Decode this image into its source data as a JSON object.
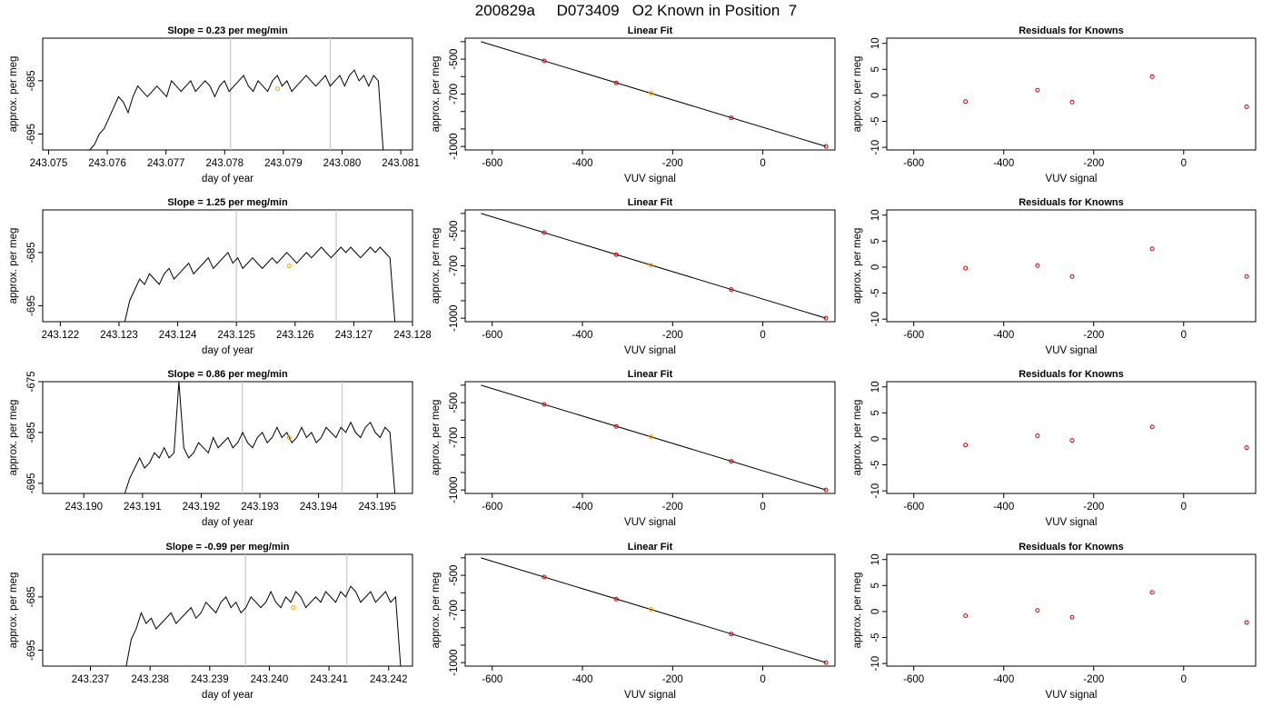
{
  "title": "200829a     D073409   O2 Known in Position  7",
  "colors": {
    "trace": "#000000",
    "known_point": "#cc0000",
    "sample_point": "#ffa500",
    "guide_line": "#c8c8c8"
  },
  "rows": [
    {
      "slope_title": "Slope =  0.23  per meg/min",
      "fit_title": "Linear Fit",
      "resid_title": "Residuals for Knowns",
      "ts_xlabel": "day of year",
      "ts_ylabel": "approx. per meg",
      "fit_xlabel": "VUV signal",
      "fit_ylabel": "approx. per meg",
      "resid_xlabel": "VUV signal",
      "resid_ylabel": "approx. per meg",
      "ts_xticks": [
        "243.075",
        "243.076",
        "243.077",
        "243.078",
        "243.079",
        "243.080",
        "243.081"
      ],
      "ts_yticks": [
        "-695",
        "-685"
      ],
      "fit_xticks": [
        "-600",
        "-400",
        "-200",
        "0"
      ],
      "fit_yticks": [
        "-1000",
        "-700",
        "-500"
      ],
      "resid_xticks": [
        "-600",
        "-400",
        "-200",
        "0"
      ],
      "resid_yticks": [
        "-10",
        "-5",
        "0",
        "5",
        "10"
      ]
    },
    {
      "slope_title": "Slope =  1.25  per meg/min",
      "fit_title": "Linear Fit",
      "resid_title": "Residuals for Knowns",
      "ts_xlabel": "day of year",
      "ts_ylabel": "approx. per meg",
      "fit_xlabel": "VUV signal",
      "fit_ylabel": "approx. per meg",
      "resid_xlabel": "VUV signal",
      "resid_ylabel": "approx. per meg",
      "ts_xticks": [
        "243.122",
        "243.123",
        "243.124",
        "243.125",
        "243.126",
        "243.127",
        "243.128"
      ],
      "ts_yticks": [
        "-695",
        "-685"
      ],
      "fit_xticks": [
        "-600",
        "-400",
        "-200",
        "0"
      ],
      "fit_yticks": [
        "-1000",
        "-700",
        "-500"
      ],
      "resid_xticks": [
        "-600",
        "-400",
        "-200",
        "0"
      ],
      "resid_yticks": [
        "-10",
        "-5",
        "0",
        "5",
        "10"
      ]
    },
    {
      "slope_title": "Slope =  0.86  per meg/min",
      "fit_title": "Linear Fit",
      "resid_title": "Residuals for Knowns",
      "ts_xlabel": "day of year",
      "ts_ylabel": "approx. per meg",
      "fit_xlabel": "VUV signal",
      "fit_ylabel": "approx. per meg",
      "resid_xlabel": "VUV signal",
      "resid_ylabel": "approx. per meg",
      "ts_xticks": [
        "243.190",
        "243.191",
        "243.192",
        "243.193",
        "243.194",
        "243.195"
      ],
      "ts_yticks": [
        "-695",
        "-685",
        "-675"
      ],
      "fit_xticks": [
        "-600",
        "-400",
        "-200",
        "0"
      ],
      "fit_yticks": [
        "-1000",
        "-700",
        "-500"
      ],
      "resid_xticks": [
        "-600",
        "-400",
        "-200",
        "0"
      ],
      "resid_yticks": [
        "-10",
        "-5",
        "0",
        "5",
        "10"
      ]
    },
    {
      "slope_title": "Slope =  -0.99  per meg/min",
      "fit_title": "Linear Fit",
      "resid_title": "Residuals for Knowns",
      "ts_xlabel": "day of year",
      "ts_ylabel": "approx. per meg",
      "fit_xlabel": "VUV signal",
      "fit_ylabel": "approx. per meg",
      "resid_xlabel": "VUV signal",
      "resid_ylabel": "approx. per meg",
      "ts_xticks": [
        "243.237",
        "243.238",
        "243.239",
        "243.240",
        "243.241",
        "243.242"
      ],
      "ts_yticks": [
        "-695",
        "-685"
      ],
      "fit_xticks": [
        "-600",
        "-400",
        "-200",
        "0"
      ],
      "fit_yticks": [
        "-1000",
        "-700",
        "-500"
      ],
      "resid_xticks": [
        "-600",
        "-400",
        "-200",
        "0"
      ],
      "resid_yticks": [
        "-10",
        "-5",
        "0",
        "5",
        "10"
      ]
    }
  ],
  "chart_data": [
    {
      "type": "line",
      "title": "Slope =  0.23  per meg/min",
      "xlabel": "day of year",
      "ylabel": "approx. per meg",
      "xlim": [
        243.0749,
        243.0812
      ],
      "ylim": [
        -698,
        -677
      ],
      "guide_lines_x": [
        243.0781,
        243.0798
      ],
      "trace_x_range": [
        243.0757,
        243.0807
      ],
      "trace_y": [
        -698,
        -697,
        -695,
        -694,
        -692,
        -690,
        -688,
        -689,
        -691,
        -688,
        -686,
        -687,
        -688,
        -687,
        -686,
        -687,
        -688,
        -685,
        -686,
        -687,
        -686,
        -685,
        -687,
        -686,
        -685,
        -686,
        -688,
        -686,
        -685,
        -687,
        -686,
        -685,
        -684,
        -686,
        -687,
        -685,
        -686,
        -687,
        -685,
        -684,
        -686,
        -685,
        -687,
        -686,
        -685,
        -684,
        -685,
        -686,
        -685,
        -684,
        -686,
        -685,
        -684,
        -686,
        -684,
        -683,
        -685,
        -684,
        -686,
        -684,
        -685,
        -698
      ],
      "sample_point": {
        "x": 243.0789,
        "y": -686.5
      }
    },
    {
      "type": "scatter",
      "title": "Linear Fit",
      "xlabel": "VUV signal",
      "ylabel": "approx. per meg",
      "xlim": [
        -660,
        160
      ],
      "ylim": [
        -1020,
        -380
      ],
      "fit_line": [
        [
          -625,
          -400
        ],
        [
          140,
          -1000
        ]
      ],
      "known_points": [
        {
          "x": -485,
          "y": -510
        },
        {
          "x": -325,
          "y": -636
        },
        {
          "x": -70,
          "y": -836
        },
        {
          "x": 140,
          "y": -1000
        }
      ],
      "sample_point": {
        "x": -248,
        "y": -695
      }
    },
    {
      "type": "scatter",
      "title": "Residuals for Knowns",
      "xlabel": "VUV signal",
      "ylabel": "approx. per meg",
      "xlim": [
        -660,
        160
      ],
      "ylim": [
        -10.5,
        11
      ],
      "known_points": [
        {
          "x": -485,
          "y": -1.2
        },
        {
          "x": -325,
          "y": 1.0
        },
        {
          "x": -248,
          "y": -1.3
        },
        {
          "x": -70,
          "y": 3.6
        },
        {
          "x": 140,
          "y": -2.2
        }
      ]
    },
    {
      "type": "line",
      "title": "Slope =  1.25  per meg/min",
      "xlabel": "day of year",
      "ylabel": "approx. per meg",
      "xlim": [
        243.1217,
        243.128
      ],
      "ylim": [
        -698,
        -677
      ],
      "guide_lines_x": [
        243.125,
        243.1267
      ],
      "trace_x_range": [
        243.1231,
        243.1277
      ],
      "trace_y": [
        -698,
        -694,
        -692,
        -690,
        -691,
        -689,
        -690,
        -691,
        -689,
        -688,
        -690,
        -689,
        -688,
        -687,
        -689,
        -688,
        -687,
        -686,
        -688,
        -687,
        -686,
        -685,
        -687,
        -686,
        -688,
        -687,
        -686,
        -687,
        -688,
        -687,
        -686,
        -687,
        -686,
        -685,
        -686,
        -687,
        -686,
        -685,
        -686,
        -685,
        -684,
        -685,
        -686,
        -685,
        -684,
        -685,
        -684,
        -685,
        -686,
        -685,
        -684,
        -685,
        -684,
        -685,
        -686,
        -698
      ],
      "sample_point": {
        "x": 243.1259,
        "y": -687.5
      }
    },
    {
      "type": "scatter",
      "title": "Linear Fit",
      "xlabel": "VUV signal",
      "ylabel": "approx. per meg",
      "xlim": [
        -660,
        160
      ],
      "ylim": [
        -1020,
        -380
      ],
      "fit_line": [
        [
          -625,
          -400
        ],
        [
          140,
          -1000
        ]
      ],
      "known_points": [
        {
          "x": -485,
          "y": -510
        },
        {
          "x": -325,
          "y": -636
        },
        {
          "x": -70,
          "y": -836
        },
        {
          "x": 140,
          "y": -1000
        }
      ],
      "sample_point": {
        "x": -248,
        "y": -696
      }
    },
    {
      "type": "scatter",
      "title": "Residuals for Knowns",
      "xlabel": "VUV signal",
      "ylabel": "approx. per meg",
      "xlim": [
        -660,
        160
      ],
      "ylim": [
        -10.5,
        11
      ],
      "known_points": [
        {
          "x": -485,
          "y": -0.2
        },
        {
          "x": -325,
          "y": 0.3
        },
        {
          "x": -248,
          "y": -1.8
        },
        {
          "x": -70,
          "y": 3.5
        },
        {
          "x": 140,
          "y": -1.8
        }
      ]
    },
    {
      "type": "line",
      "title": "Slope =  0.86  per meg/min",
      "xlabel": "day of year",
      "ylabel": "approx. per meg",
      "xlim": [
        243.1893,
        243.1956
      ],
      "ylim": [
        -697,
        -675
      ],
      "guide_lines_x": [
        243.1927,
        243.1944
      ],
      "trace_x_range": [
        243.1907,
        243.1953
      ],
      "trace_y": [
        -697,
        -694,
        -692,
        -690,
        -692,
        -691,
        -689,
        -690,
        -688,
        -690,
        -689,
        -675,
        -688,
        -690,
        -689,
        -687,
        -688,
        -689,
        -686,
        -688,
        -687,
        -686,
        -688,
        -687,
        -685,
        -687,
        -688,
        -686,
        -685,
        -687,
        -686,
        -684,
        -686,
        -685,
        -687,
        -686,
        -684,
        -686,
        -685,
        -687,
        -686,
        -684,
        -685,
        -686,
        -684,
        -685,
        -683,
        -685,
        -686,
        -684,
        -683,
        -685,
        -686,
        -684,
        -685,
        -697
      ],
      "sample_point": {
        "x": 243.1935,
        "y": -686
      }
    },
    {
      "type": "scatter",
      "title": "Linear Fit",
      "xlabel": "VUV signal",
      "ylabel": "approx. per meg",
      "xlim": [
        -660,
        160
      ],
      "ylim": [
        -1020,
        -380
      ],
      "fit_line": [
        [
          -625,
          -400
        ],
        [
          140,
          -1000
        ]
      ],
      "known_points": [
        {
          "x": -485,
          "y": -510
        },
        {
          "x": -325,
          "y": -636
        },
        {
          "x": -70,
          "y": -836
        },
        {
          "x": 140,
          "y": -1000
        }
      ],
      "sample_point": {
        "x": -248,
        "y": -695
      }
    },
    {
      "type": "scatter",
      "title": "Residuals for Knowns",
      "xlabel": "VUV signal",
      "ylabel": "approx. per meg",
      "xlim": [
        -660,
        160
      ],
      "ylim": [
        -10.5,
        11
      ],
      "known_points": [
        {
          "x": -485,
          "y": -1.2
        },
        {
          "x": -325,
          "y": 0.6
        },
        {
          "x": -248,
          "y": -0.3
        },
        {
          "x": -70,
          "y": 2.3
        },
        {
          "x": 140,
          "y": -1.7
        }
      ]
    },
    {
      "type": "line",
      "title": "Slope =  -0.99  per meg/min",
      "xlabel": "day of year",
      "ylabel": "approx. per meg",
      "xlim": [
        243.2362,
        243.2424
      ],
      "ylim": [
        -698,
        -677
      ],
      "guide_lines_x": [
        243.2396,
        243.2413
      ],
      "trace_x_range": [
        243.2376,
        243.2422
      ],
      "trace_y": [
        -698,
        -693,
        -691,
        -688,
        -690,
        -689,
        -691,
        -690,
        -689,
        -688,
        -690,
        -689,
        -688,
        -687,
        -689,
        -688,
        -686,
        -687,
        -688,
        -686,
        -685,
        -687,
        -686,
        -688,
        -687,
        -685,
        -686,
        -687,
        -686,
        -684,
        -686,
        -687,
        -685,
        -686,
        -684,
        -685,
        -687,
        -686,
        -685,
        -686,
        -684,
        -685,
        -686,
        -684,
        -685,
        -683,
        -684,
        -686,
        -685,
        -684,
        -686,
        -685,
        -684,
        -686,
        -685,
        -698
      ],
      "sample_point": {
        "x": 243.2404,
        "y": -687
      }
    },
    {
      "type": "scatter",
      "title": "Linear Fit",
      "xlabel": "VUV signal",
      "ylabel": "approx. per meg",
      "xlim": [
        -660,
        160
      ],
      "ylim": [
        -1020,
        -380
      ],
      "fit_line": [
        [
          -625,
          -400
        ],
        [
          140,
          -1000
        ]
      ],
      "known_points": [
        {
          "x": -485,
          "y": -510
        },
        {
          "x": -325,
          "y": -636
        },
        {
          "x": -70,
          "y": -836
        },
        {
          "x": 140,
          "y": -1000
        }
      ],
      "sample_point": {
        "x": -248,
        "y": -695
      }
    },
    {
      "type": "scatter",
      "title": "Residuals for Knowns",
      "xlabel": "VUV signal",
      "ylabel": "approx. per meg",
      "xlim": [
        -660,
        160
      ],
      "ylim": [
        -10.5,
        11
      ],
      "known_points": [
        {
          "x": -485,
          "y": -0.8
        },
        {
          "x": -325,
          "y": 0.2
        },
        {
          "x": -248,
          "y": -1.1
        },
        {
          "x": -70,
          "y": 3.7
        },
        {
          "x": 140,
          "y": -2.1
        }
      ]
    }
  ]
}
